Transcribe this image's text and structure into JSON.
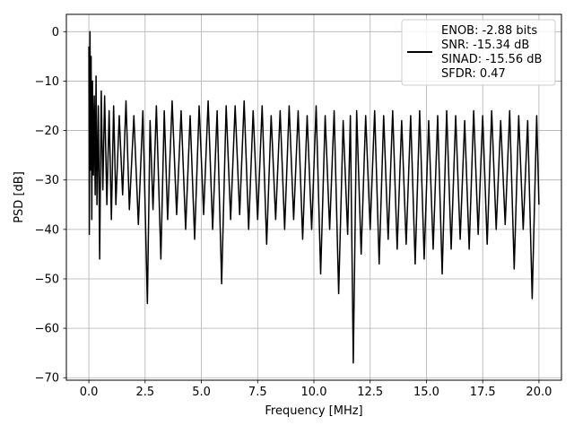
{
  "chart_data": {
    "type": "line",
    "title": "",
    "xlabel": "Frequency [MHz]",
    "ylabel": "PSD [dB]",
    "xlim": [
      -1,
      21
    ],
    "ylim": [
      -70.5,
      3.5
    ],
    "xticks": [
      0.0,
      2.5,
      5.0,
      7.5,
      10.0,
      12.5,
      15.0,
      17.5,
      20.0
    ],
    "xtick_labels": [
      "0.0",
      "2.5",
      "5.0",
      "7.5",
      "10.0",
      "12.5",
      "15.0",
      "17.5",
      "20.0"
    ],
    "yticks": [
      0,
      -10,
      -20,
      -30,
      -40,
      -50,
      -60,
      -70
    ],
    "ytick_labels": [
      "0",
      "−10",
      "−20",
      "−30",
      "−40",
      "−50",
      "−60",
      "−70"
    ],
    "grid": true,
    "legend_position": "top-right",
    "legend": {
      "line_color": "#000000",
      "lines": [
        "ENOB: -2.88 bits",
        "SNR: -15.34 dB",
        "SINAD: -15.56 dB",
        "SFDR: 0.47"
      ]
    },
    "series": [
      {
        "color": "#000000",
        "x": [
          0.0,
          0.02,
          0.05,
          0.08,
          0.1,
          0.13,
          0.16,
          0.2,
          0.24,
          0.28,
          0.32,
          0.36,
          0.42,
          0.48,
          0.55,
          0.62,
          0.7,
          0.8,
          0.9,
          1.0,
          1.1,
          1.2,
          1.35,
          1.5,
          1.65,
          1.8,
          2.0,
          2.2,
          2.4,
          2.6,
          2.72,
          2.85,
          3.0,
          3.2,
          3.35,
          3.5,
          3.7,
          3.9,
          4.1,
          4.3,
          4.5,
          4.7,
          4.9,
          5.1,
          5.3,
          5.5,
          5.7,
          5.9,
          6.1,
          6.3,
          6.5,
          6.7,
          6.9,
          7.1,
          7.3,
          7.5,
          7.7,
          7.9,
          8.1,
          8.3,
          8.5,
          8.7,
          8.9,
          9.1,
          9.3,
          9.5,
          9.7,
          9.9,
          10.1,
          10.3,
          10.5,
          10.7,
          10.9,
          11.1,
          11.3,
          11.5,
          11.62,
          11.75,
          11.9,
          12.1,
          12.3,
          12.5,
          12.7,
          12.9,
          13.1,
          13.3,
          13.5,
          13.7,
          13.9,
          14.1,
          14.3,
          14.5,
          14.7,
          14.9,
          15.1,
          15.3,
          15.5,
          15.7,
          15.9,
          16.1,
          16.3,
          16.5,
          16.7,
          16.9,
          17.1,
          17.3,
          17.5,
          17.7,
          17.9,
          18.1,
          18.3,
          18.5,
          18.7,
          18.9,
          19.1,
          19.3,
          19.5,
          19.7,
          19.9,
          20.0
        ],
        "y": [
          -3,
          -41,
          0,
          -28,
          -5,
          -38,
          -10,
          -29,
          -13,
          -33,
          -9,
          -35,
          -15,
          -46,
          -12,
          -32,
          -13,
          -35,
          -16,
          -38,
          -15,
          -35,
          -17,
          -33,
          -14,
          -36,
          -17,
          -39,
          -16,
          -55,
          -18,
          -36,
          -15,
          -46,
          -16,
          -38,
          -14,
          -37,
          -16,
          -40,
          -17,
          -42,
          -15,
          -37,
          -14,
          -40,
          -16,
          -51,
          -15,
          -38,
          -15,
          -37,
          -14,
          -40,
          -16,
          -38,
          -15,
          -43,
          -17,
          -38,
          -16,
          -40,
          -15,
          -38,
          -16,
          -42,
          -17,
          -40,
          -15,
          -49,
          -17,
          -40,
          -16,
          -53,
          -18,
          -41,
          -17,
          -67,
          -16,
          -45,
          -17,
          -40,
          -16,
          -47,
          -17,
          -42,
          -16,
          -44,
          -18,
          -43,
          -17,
          -47,
          -16,
          -46,
          -18,
          -44,
          -17,
          -49,
          -16,
          -44,
          -17,
          -42,
          -18,
          -44,
          -16,
          -41,
          -17,
          -43,
          -16,
          -40,
          -18,
          -39,
          -16,
          -48,
          -17,
          -40,
          -18,
          -54,
          -17,
          -35
        ]
      }
    ]
  }
}
